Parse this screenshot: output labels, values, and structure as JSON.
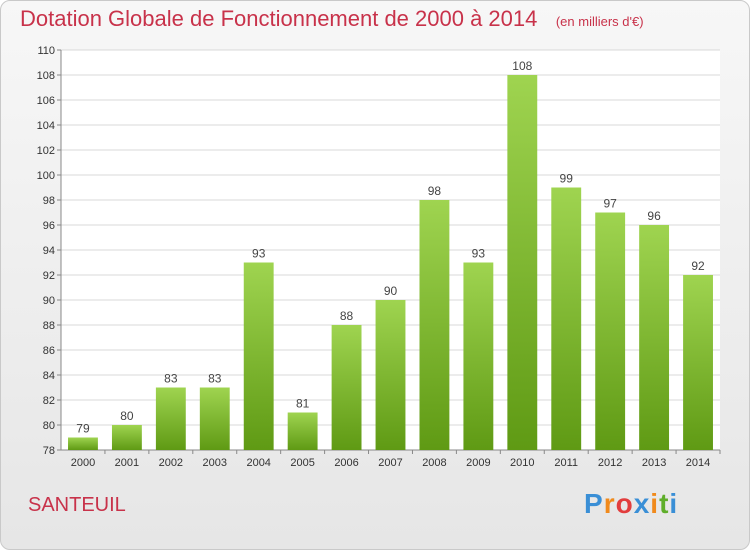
{
  "title": "Dotation Globale de Fonctionnement de 2000 à 2014",
  "subtitle": "(en milliers d'€)",
  "place": "SANTEUIL",
  "logo": "Proxiti",
  "colors": {
    "title": "#c8324a",
    "bar_top": "#9fd450",
    "bar_bottom": "#5f9a14",
    "logo": [
      "#3a8fd6",
      "#f08a1c",
      "#e23d3d",
      "#3a8fd6",
      "#f08a1c",
      "#5fae2a",
      "#3a8fd6"
    ]
  },
  "chart_data": {
    "type": "bar",
    "categories": [
      "2000",
      "2001",
      "2002",
      "2003",
      "2004",
      "2005",
      "2006",
      "2007",
      "2008",
      "2009",
      "2010",
      "2011",
      "2012",
      "2013",
      "2014"
    ],
    "values": [
      79,
      80,
      83,
      83,
      93,
      81,
      88,
      90,
      98,
      93,
      108,
      99,
      97,
      96,
      92
    ],
    "ylim": [
      78,
      110
    ],
    "yticks": [
      78,
      80,
      82,
      84,
      86,
      88,
      90,
      92,
      94,
      96,
      98,
      100,
      102,
      104,
      106,
      108,
      110
    ],
    "grid": true,
    "data_labels": true
  }
}
